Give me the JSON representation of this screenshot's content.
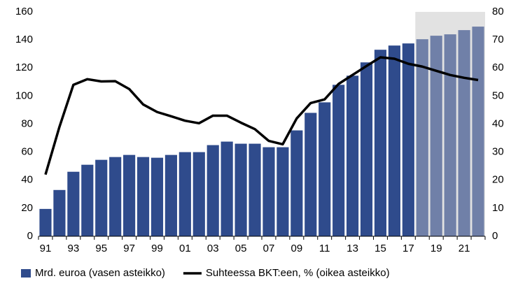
{
  "chart_data": {
    "type": "bar",
    "categories": [
      "91",
      null,
      "93",
      null,
      "95",
      null,
      "97",
      null,
      "99",
      null,
      "01",
      null,
      "03",
      null,
      "05",
      null,
      "07",
      null,
      "09",
      null,
      "11",
      null,
      "13",
      null,
      "15",
      null,
      "17",
      null,
      "19",
      null,
      "21",
      null
    ],
    "series": [
      {
        "name": "Mrd. euroa (vasen asteikko)",
        "type": "bar",
        "color": "#2f4b8c",
        "colors": [
          "#2f4b8c",
          "#2f4b8c",
          "#2f4b8c",
          "#2f4b8c",
          "#2f4b8c",
          "#2f4b8c",
          "#2f4b8c",
          "#2f4b8c",
          "#2f4b8c",
          "#2f4b8c",
          "#2f4b8c",
          "#2f4b8c",
          "#2f4b8c",
          "#2f4b8c",
          "#2f4b8c",
          "#2f4b8c",
          "#2f4b8c",
          "#2f4b8c",
          "#2f4b8c",
          "#2f4b8c",
          "#2f4b8c",
          "#2f4b8c",
          "#2f4b8c",
          "#2f4b8c",
          "#2f4b8c",
          "#2f4b8c",
          "#2f4b8c",
          "#7080a8",
          "#7080a8",
          "#7080a8",
          "#7080a8",
          "#7080a8"
        ],
        "values": [
          19.5,
          33,
          46,
          51,
          54.5,
          56.5,
          58,
          56.5,
          56,
          58,
          60,
          60,
          65,
          67.5,
          66,
          66,
          63.5,
          63.5,
          75.5,
          88,
          95.5,
          108,
          114.5,
          124,
          133,
          136,
          137.5,
          140.5,
          143,
          144,
          147,
          149.5
        ]
      },
      {
        "name": "Suhteessa BKT:een, % (oikea asteikko)",
        "type": "line",
        "color": "#000000",
        "axis": "y2",
        "values": [
          22,
          39,
          54,
          56,
          55.2,
          55.3,
          52.5,
          47,
          44.3,
          42.8,
          41.2,
          40.3,
          43,
          43,
          40.5,
          38.2,
          34,
          32.8,
          42,
          47.5,
          48.8,
          54.3,
          57.5,
          60.7,
          63.8,
          63.3,
          61.5,
          60.5,
          59,
          57.5,
          56.5,
          55.7
        ]
      }
    ],
    "ylim": [
      0,
      160
    ],
    "yticks": [
      0,
      20,
      40,
      60,
      80,
      100,
      120,
      140,
      160
    ],
    "y2lim": [
      0,
      80
    ],
    "y2ticks": [
      0,
      10,
      20,
      30,
      40,
      50,
      60,
      70,
      80
    ],
    "shade_color": "#e2e2e2",
    "legend": "bottom"
  }
}
